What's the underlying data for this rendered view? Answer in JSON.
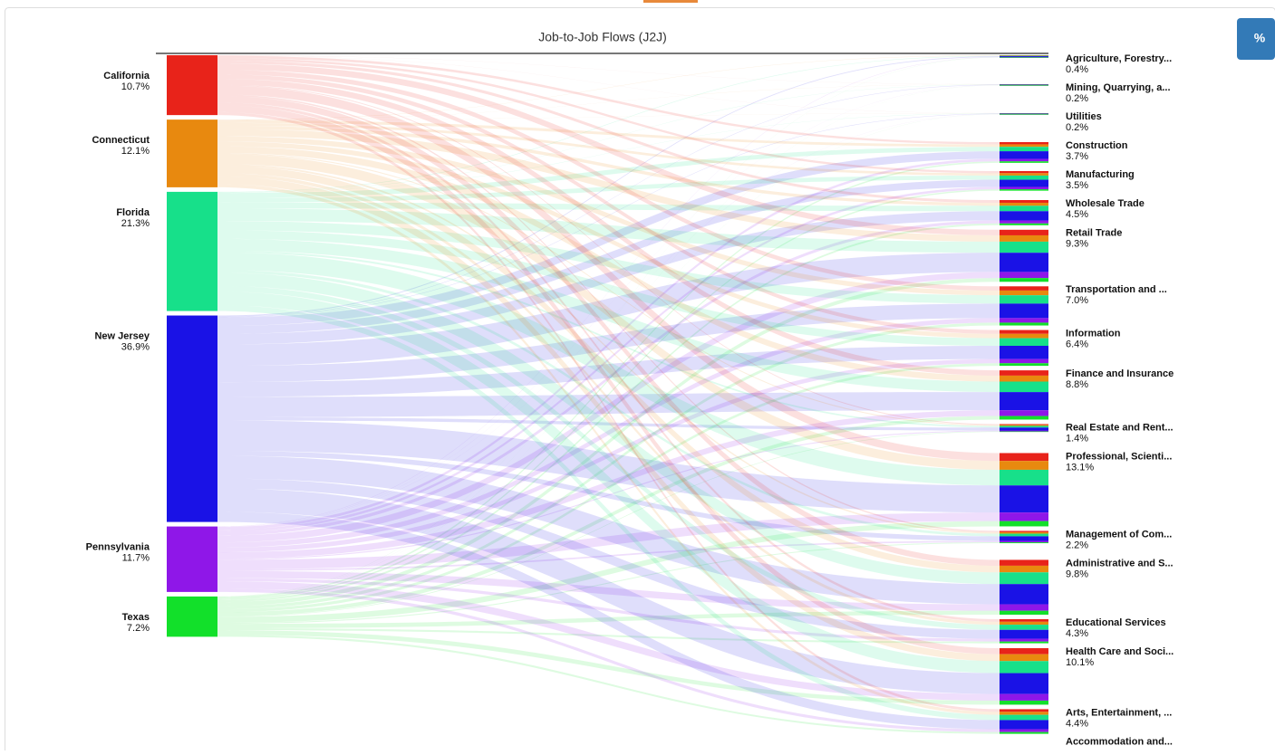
{
  "chart_data": {
    "type": "sankey",
    "title": "Job-to-Job Flows (J2J)",
    "button": "%",
    "sources": [
      {
        "name": "California",
        "value": 10.7,
        "value_label": "10.7%",
        "color": "#e8231a"
      },
      {
        "name": "Connecticut",
        "value": 12.1,
        "value_label": "12.1%",
        "color": "#e8890f"
      },
      {
        "name": "Florida",
        "value": 21.3,
        "value_label": "21.3%",
        "color": "#17e08a"
      },
      {
        "name": "New Jersey",
        "value": 36.9,
        "value_label": "36.9%",
        "color": "#1a12e6"
      },
      {
        "name": "Pennsylvania",
        "value": 11.7,
        "value_label": "11.7%",
        "color": "#8f17e8"
      },
      {
        "name": "Texas",
        "value": 7.2,
        "value_label": "7.2%",
        "color": "#12e02a"
      }
    ],
    "targets": [
      {
        "name": "Agriculture, Forestry...",
        "value": 0.4,
        "value_label": "0.4%"
      },
      {
        "name": "Mining, Quarrying, a...",
        "value": 0.2,
        "value_label": "0.2%"
      },
      {
        "name": "Utilities",
        "value": 0.2,
        "value_label": "0.2%"
      },
      {
        "name": "Construction",
        "value": 3.7,
        "value_label": "3.7%"
      },
      {
        "name": "Manufacturing",
        "value": 3.5,
        "value_label": "3.5%"
      },
      {
        "name": "Wholesale Trade",
        "value": 4.5,
        "value_label": "4.5%"
      },
      {
        "name": "Retail Trade",
        "value": 9.3,
        "value_label": "9.3%"
      },
      {
        "name": "Transportation and ...",
        "value": 7.0,
        "value_label": "7.0%"
      },
      {
        "name": "Information",
        "value": 6.4,
        "value_label": "6.4%"
      },
      {
        "name": "Finance and Insurance",
        "value": 8.8,
        "value_label": "8.8%"
      },
      {
        "name": "Real Estate and Rent...",
        "value": 1.4,
        "value_label": "1.4%"
      },
      {
        "name": "Professional, Scienti...",
        "value": 13.1,
        "value_label": "13.1%"
      },
      {
        "name": "Management of Com...",
        "value": 2.2,
        "value_label": "2.2%"
      },
      {
        "name": "Administrative and S...",
        "value": 9.8,
        "value_label": "9.8%"
      },
      {
        "name": "Educational Services",
        "value": 4.3,
        "value_label": "4.3%"
      },
      {
        "name": "Health Care and Soci...",
        "value": 10.1,
        "value_label": "10.1%"
      },
      {
        "name": "Arts, Entertainment, ...",
        "value": 4.4,
        "value_label": "4.4%"
      },
      {
        "name": "Accommodation and...",
        "value": null,
        "value_label": null
      }
    ]
  }
}
